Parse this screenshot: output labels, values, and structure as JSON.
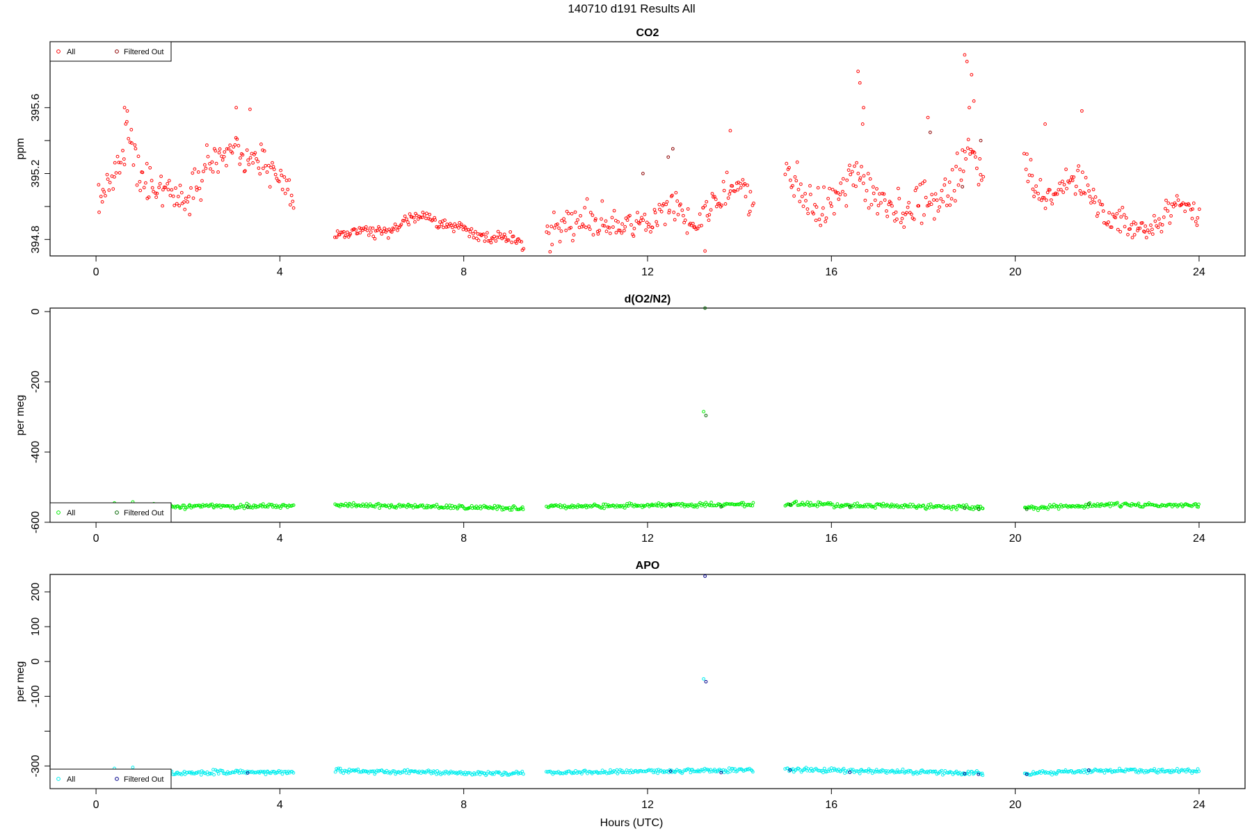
{
  "figure": {
    "title": "140710   d191   Results All",
    "xlabel": "Hours (UTC)"
  },
  "chart_data": [
    {
      "type": "scatter",
      "title": "CO2",
      "xlabel": "Hours (UTC)",
      "ylabel": "ppm",
      "xlim": [
        -1,
        25
      ],
      "ylim": [
        394.7,
        396.0
      ],
      "xticks": [
        0,
        4,
        8,
        12,
        16,
        20,
        24
      ],
      "yticks": [
        394.8,
        395.0,
        395.2,
        395.4,
        395.6
      ],
      "ytick_labels": [
        "394.8",
        "",
        "395.2",
        "",
        "395.6"
      ],
      "legend": {
        "position": "top-left",
        "entries": [
          "All",
          "Filtered Out"
        ]
      },
      "colors": {
        "all": "#ff0000",
        "filtered": "#8b0000"
      },
      "segments": [
        {
          "start": 0.05,
          "end": 4.3,
          "anchors": [
            [
              0.05,
              395.03
            ],
            [
              0.5,
              395.25
            ],
            [
              0.7,
              395.45
            ],
            [
              1.0,
              395.15
            ],
            [
              1.5,
              395.12
            ],
            [
              2.0,
              395.02
            ],
            [
              2.5,
              395.3
            ],
            [
              3.0,
              395.35
            ],
            [
              3.5,
              395.25
            ],
            [
              4.0,
              395.2
            ],
            [
              4.3,
              395.0
            ]
          ],
          "noise": 0.11
        },
        {
          "start": 5.2,
          "end": 9.3,
          "anchors": [
            [
              5.2,
              394.82
            ],
            [
              5.8,
              394.86
            ],
            [
              6.3,
              394.83
            ],
            [
              7.0,
              394.95
            ],
            [
              7.5,
              394.9
            ],
            [
              8.0,
              394.87
            ],
            [
              8.5,
              394.8
            ],
            [
              9.0,
              394.82
            ],
            [
              9.3,
              394.76
            ]
          ],
          "noise": 0.035
        },
        {
          "start": 9.8,
          "end": 14.3,
          "anchors": [
            [
              9.8,
              394.82
            ],
            [
              10.5,
              394.92
            ],
            [
              11.0,
              394.9
            ],
            [
              11.5,
              394.88
            ],
            [
              12.0,
              394.92
            ],
            [
              12.5,
              395.0
            ],
            [
              13.0,
              394.92
            ],
            [
              13.5,
              395.05
            ],
            [
              14.0,
              395.15
            ],
            [
              14.3,
              395.0
            ]
          ],
          "noise": 0.11
        },
        {
          "start": 15.0,
          "end": 19.3,
          "anchors": [
            [
              15.0,
              395.2
            ],
            [
              15.5,
              395.0
            ],
            [
              16.0,
              395.0
            ],
            [
              16.5,
              395.2
            ],
            [
              17.0,
              395.05
            ],
            [
              17.5,
              394.95
            ],
            [
              18.0,
              395.05
            ],
            [
              18.5,
              395.05
            ],
            [
              19.0,
              395.35
            ],
            [
              19.3,
              395.2
            ]
          ],
          "noise": 0.13
        },
        {
          "start": 20.2,
          "end": 24.0,
          "anchors": [
            [
              20.2,
              395.3
            ],
            [
              20.5,
              395.05
            ],
            [
              21.0,
              395.1
            ],
            [
              21.5,
              395.15
            ],
            [
              22.0,
              394.93
            ],
            [
              22.5,
              394.88
            ],
            [
              23.0,
              394.87
            ],
            [
              23.5,
              395.0
            ],
            [
              24.0,
              394.98
            ]
          ],
          "noise": 0.09
        }
      ],
      "outliers": [
        {
          "x": 16.58,
          "y": 395.82
        },
        {
          "x": 16.62,
          "y": 395.75
        },
        {
          "x": 16.7,
          "y": 395.6
        },
        {
          "x": 16.68,
          "y": 395.5
        },
        {
          "x": 18.9,
          "y": 395.92
        },
        {
          "x": 18.95,
          "y": 395.88
        },
        {
          "x": 19.05,
          "y": 395.8
        },
        {
          "x": 19.1,
          "y": 395.64
        },
        {
          "x": 19.0,
          "y": 395.6
        },
        {
          "x": 18.1,
          "y": 395.54
        },
        {
          "x": 21.45,
          "y": 395.58
        },
        {
          "x": 20.65,
          "y": 395.5
        },
        {
          "x": 0.62,
          "y": 395.6
        },
        {
          "x": 0.68,
          "y": 395.58
        },
        {
          "x": 3.05,
          "y": 395.6
        },
        {
          "x": 3.35,
          "y": 395.59
        },
        {
          "x": 13.25,
          "y": 394.73
        },
        {
          "x": 13.8,
          "y": 395.46
        }
      ],
      "filtered": [
        {
          "x": 12.45,
          "y": 395.3
        },
        {
          "x": 12.55,
          "y": 395.35
        },
        {
          "x": 18.85,
          "y": 395.12
        },
        {
          "x": 19.25,
          "y": 395.4
        },
        {
          "x": 11.9,
          "y": 395.2
        },
        {
          "x": 18.15,
          "y": 395.45
        }
      ]
    },
    {
      "type": "scatter",
      "title": "d(O2/N2)",
      "xlabel": "Hours (UTC)",
      "ylabel": "per meg",
      "xlim": [
        -1,
        25
      ],
      "ylim": [
        -600,
        10
      ],
      "xticks": [
        0,
        4,
        8,
        12,
        16,
        20,
        24
      ],
      "yticks": [
        0,
        -200,
        -400,
        -600
      ],
      "ytick_labels": [
        "0",
        "-200",
        "-400",
        "-600"
      ],
      "legend": {
        "position": "bottom-left",
        "entries": [
          "All",
          "Filtered Out"
        ]
      },
      "colors": {
        "all": "#00ee00",
        "filtered": "#006400"
      },
      "segments": [
        {
          "start": 0.05,
          "end": 4.3,
          "anchors": [
            [
              0.05,
              -557
            ],
            [
              2.0,
              -555
            ],
            [
              4.3,
              -553
            ]
          ],
          "noise": 6
        },
        {
          "start": 5.2,
          "end": 9.3,
          "anchors": [
            [
              5.2,
              -550
            ],
            [
              7.0,
              -555
            ],
            [
              9.3,
              -560
            ]
          ],
          "noise": 6
        },
        {
          "start": 9.8,
          "end": 14.3,
          "anchors": [
            [
              9.8,
              -556
            ],
            [
              12.0,
              -552
            ],
            [
              14.3,
              -549
            ]
          ],
          "noise": 6
        },
        {
          "start": 15.0,
          "end": 19.3,
          "anchors": [
            [
              15.0,
              -548
            ],
            [
              17.0,
              -553
            ],
            [
              19.3,
              -558
            ]
          ],
          "noise": 6
        },
        {
          "start": 20.2,
          "end": 24.0,
          "anchors": [
            [
              20.2,
              -560
            ],
            [
              22.0,
              -550
            ],
            [
              24.0,
              -552
            ]
          ],
          "noise": 6
        }
      ],
      "outliers": [
        {
          "x": 13.22,
          "y": -285
        },
        {
          "x": 0.4,
          "y": -545
        },
        {
          "x": 0.8,
          "y": -542
        }
      ],
      "filtered": [
        {
          "x": 13.25,
          "y": 10
        },
        {
          "x": 13.27,
          "y": -296
        },
        {
          "x": 3.3,
          "y": -557
        },
        {
          "x": 12.5,
          "y": -553
        },
        {
          "x": 13.6,
          "y": -556
        },
        {
          "x": 15.1,
          "y": -550
        },
        {
          "x": 16.4,
          "y": -555
        },
        {
          "x": 18.9,
          "y": -560
        },
        {
          "x": 19.2,
          "y": -562
        },
        {
          "x": 20.25,
          "y": -563
        },
        {
          "x": 21.6,
          "y": -548
        }
      ]
    },
    {
      "type": "scatter",
      "title": "APO",
      "xlabel": "Hours (UTC)",
      "ylabel": "per meg",
      "xlim": [
        -1,
        25
      ],
      "ylim": [
        -365,
        250
      ],
      "xticks": [
        0,
        4,
        8,
        12,
        16,
        20,
        24
      ],
      "yticks": [
        200,
        100,
        0,
        -100,
        -200,
        -300
      ],
      "ytick_labels": [
        "200",
        "100",
        "0",
        "-100",
        "",
        "-300"
      ],
      "legend": {
        "position": "bottom-left",
        "entries": [
          "All",
          "Filtered Out"
        ]
      },
      "colors": {
        "all": "#00eeee",
        "filtered": "#00008b"
      },
      "segments": [
        {
          "start": 0.05,
          "end": 4.3,
          "anchors": [
            [
              0.05,
              -320
            ],
            [
              2.0,
              -318
            ],
            [
              4.3,
              -318
            ]
          ],
          "noise": 6
        },
        {
          "start": 5.2,
          "end": 9.3,
          "anchors": [
            [
              5.2,
              -313
            ],
            [
              7.0,
              -318
            ],
            [
              9.3,
              -322
            ]
          ],
          "noise": 6
        },
        {
          "start": 9.8,
          "end": 14.3,
          "anchors": [
            [
              9.8,
              -320
            ],
            [
              12.0,
              -315
            ],
            [
              14.3,
              -312
            ]
          ],
          "noise": 6
        },
        {
          "start": 15.0,
          "end": 19.3,
          "anchors": [
            [
              15.0,
              -310
            ],
            [
              17.0,
              -315
            ],
            [
              19.3,
              -320
            ]
          ],
          "noise": 6
        },
        {
          "start": 20.2,
          "end": 24.0,
          "anchors": [
            [
              20.2,
              -322
            ],
            [
              22.0,
              -312
            ],
            [
              24.0,
              -315
            ]
          ],
          "noise": 6
        }
      ],
      "outliers": [
        {
          "x": 13.22,
          "y": -50
        },
        {
          "x": 0.4,
          "y": -307
        },
        {
          "x": 0.8,
          "y": -304
        }
      ],
      "filtered": [
        {
          "x": 13.25,
          "y": 245
        },
        {
          "x": 13.27,
          "y": -58
        },
        {
          "x": 3.3,
          "y": -320
        },
        {
          "x": 12.5,
          "y": -315
        },
        {
          "x": 13.6,
          "y": -319
        },
        {
          "x": 15.1,
          "y": -312
        },
        {
          "x": 16.4,
          "y": -318
        },
        {
          "x": 18.9,
          "y": -322
        },
        {
          "x": 19.2,
          "y": -324
        },
        {
          "x": 20.25,
          "y": -324
        },
        {
          "x": 21.6,
          "y": -312
        }
      ]
    }
  ]
}
